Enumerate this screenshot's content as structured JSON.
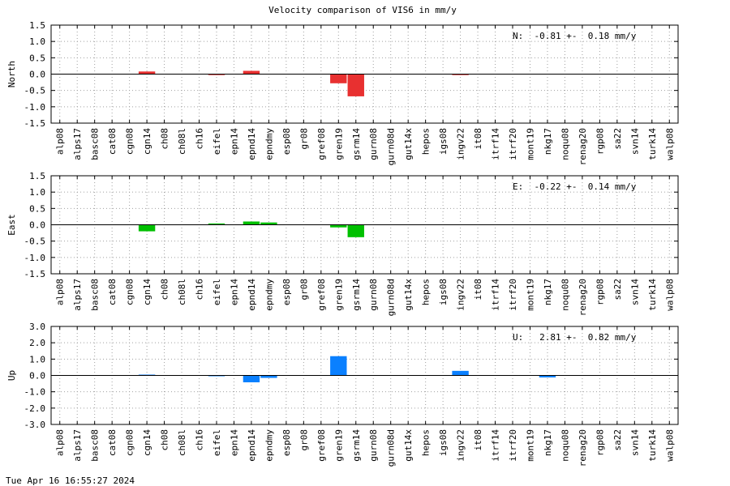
{
  "chart_data": {
    "type": "bar",
    "title": "Velocity comparison of VIS6 in mm/y",
    "categories": [
      "alp08",
      "alps17",
      "basc08",
      "cat08",
      "cgn08",
      "cgn14",
      "ch08",
      "ch08l",
      "ch16",
      "eifel",
      "epn14",
      "epnd14",
      "epndmy",
      "esp08",
      "gr08",
      "gref08",
      "gren19",
      "gsrm14",
      "gurn08",
      "gurn08d",
      "gut14x",
      "hepos",
      "igs08",
      "ingv22",
      "it08",
      "itrf14",
      "itrf20",
      "mont19",
      "nkg17",
      "noqu08",
      "renag20",
      "rgp08",
      "sa22",
      "svn14",
      "turk14",
      "walp08"
    ],
    "panels": [
      {
        "ylabel": "North",
        "color": "#e83030",
        "ylim": [
          -1.5,
          1.5
        ],
        "yticks": [
          -1.5,
          -1.0,
          -0.5,
          0.0,
          0.5,
          1.0,
          1.5
        ],
        "annotation": "N:  -0.81 +-  0.18 mm/y",
        "values": [
          0,
          0,
          0,
          0,
          0,
          0.08,
          0,
          0,
          0,
          -0.03,
          0,
          0.1,
          0,
          0,
          0,
          0,
          -0.28,
          -0.68,
          0,
          0,
          0,
          0,
          0,
          -0.03,
          0,
          0,
          0,
          0,
          0,
          0,
          0,
          0,
          0,
          0,
          0,
          0
        ]
      },
      {
        "ylabel": "East",
        "color": "#00c000",
        "ylim": [
          -1.5,
          1.5
        ],
        "yticks": [
          -1.5,
          -1.0,
          -0.5,
          0.0,
          0.5,
          1.0,
          1.5
        ],
        "annotation": "E:  -0.22 +-  0.14 mm/y",
        "values": [
          0,
          0,
          0,
          0,
          0,
          -0.2,
          0,
          0,
          0,
          0.04,
          0,
          0.1,
          0.07,
          0,
          0,
          0,
          -0.08,
          -0.38,
          0,
          0,
          0,
          0,
          0,
          0,
          0,
          0,
          0,
          0,
          0,
          0,
          0,
          0,
          0,
          0,
          0,
          0
        ]
      },
      {
        "ylabel": "Up",
        "color": "#0a80ff",
        "ylim": [
          -3.0,
          3.0
        ],
        "yticks": [
          -3.0,
          -2.0,
          -1.0,
          0.0,
          1.0,
          2.0,
          3.0
        ],
        "annotation": "U:   2.81 +-  0.82 mm/y",
        "values": [
          0,
          0,
          0,
          0,
          0,
          0.05,
          0,
          0,
          0,
          -0.05,
          0,
          -0.42,
          -0.15,
          0,
          0,
          0,
          1.18,
          0,
          0,
          0,
          0,
          0,
          0,
          0.28,
          0,
          0,
          0,
          0,
          -0.12,
          0,
          0,
          0,
          0,
          0,
          0,
          0
        ]
      }
    ],
    "grid": true,
    "annotation_position": "top-right"
  },
  "footer": {
    "timestamp": "Tue Apr 16 16:55:27 2024"
  }
}
